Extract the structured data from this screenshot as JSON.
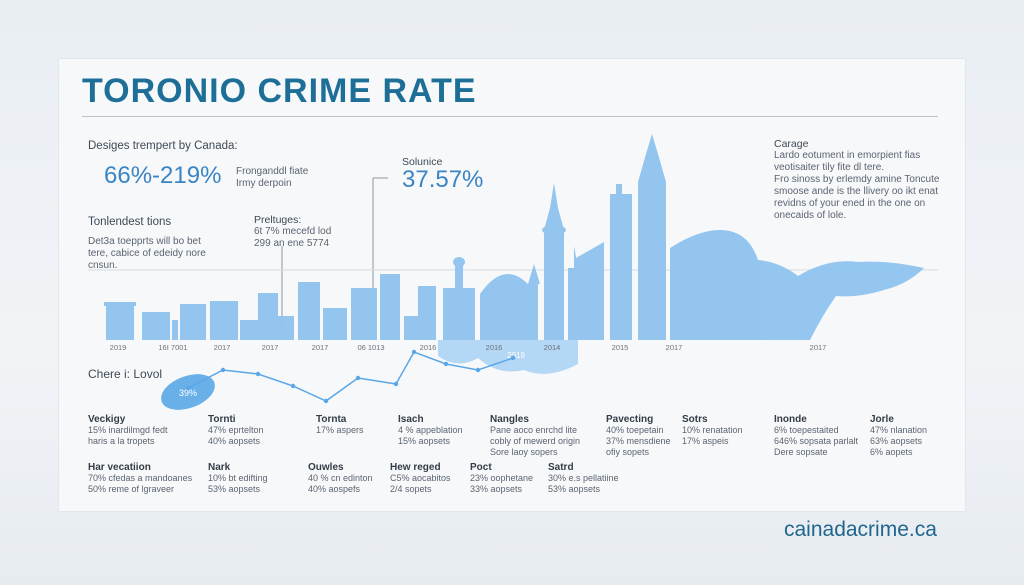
{
  "title": "TORONIO CRIME RATE",
  "watermark": "cainadacrime.ca",
  "callouts": {
    "left_heading": "Desiges trempert by Canada:",
    "range_value": "66%-219%",
    "range_note": [
      "Fronganddl fiate",
      "Irmy derpoin"
    ],
    "sub_heading": "Tonlendest tions",
    "sub_note": [
      "Det3a toepprts will bo bet",
      "tere,  cabice of edeidy nore",
      "cnsun."
    ],
    "mid_heading": "Preltuges:",
    "mid_note": [
      "6t 7% mecefd lod",
      "299 an ene 5774"
    ],
    "center_label": "Solunice",
    "center_value": "37.57%",
    "right_heading": "Carage",
    "right_note": [
      "Lardo eotument in emorpient fias",
      "veotisaiter tily fite dl tere.",
      "Fro sinoss by erlemdy amine Toncute",
      "smoose ande is the llivery oo ikt enat",
      "revidns of your ened in the one on",
      "onecaids of lole."
    ]
  },
  "chart_data": {
    "type": "area",
    "title": "TORONIO CRIME RATE",
    "x_tick_labels": [
      "2019",
      "16I 7001",
      "2017",
      "2017",
      "2017",
      "06 1013",
      "2016",
      "2016",
      "2014",
      "2015",
      "2017",
      "2017"
    ],
    "skyline_label": "2019",
    "line_chart": {
      "label": "Chere i: Lovol",
      "bubble_label": "39%",
      "points": [
        0,
        1,
        2,
        3,
        4,
        5,
        6,
        7,
        8,
        9,
        10
      ]
    }
  },
  "table": {
    "row1": [
      {
        "head": "Veckigy",
        "lines": [
          "15% inardilmgd fedt",
          "haris a la tropets"
        ]
      },
      {
        "head": "Tornti",
        "lines": [
          "47% eprtelton",
          "40% aopsets"
        ]
      },
      {
        "head": "Tornta",
        "lines": [
          "17% aspers"
        ]
      },
      {
        "head": "Isach",
        "lines": [
          "4 % appeblation",
          "15% aopsets"
        ]
      },
      {
        "head": "Nangles",
        "lines": [
          "Pane aoco enrchd lite",
          "cobly of mewerd origin",
          "Sore laoy sopers"
        ]
      },
      {
        "head": "Pavecting",
        "lines": [
          "40% toepetain",
          "37% mensdiene",
          "ofiy sopets"
        ]
      },
      {
        "head": "Sotrs",
        "lines": [
          "10% renatation",
          "17% aspeis"
        ]
      },
      {
        "head": "Inonde",
        "lines": [
          "6% toepestaited",
          "646% sopsata parlalt",
          "Dere sopsate"
        ]
      },
      {
        "head": "Jorle",
        "lines": [
          "47% nlanation",
          "63% aopsets",
          "6% aopets"
        ]
      }
    ],
    "row2": [
      {
        "head": "Har vecatiion",
        "lines": [
          "70% cfedas a mandoanes",
          "50% reme of lgraveer"
        ]
      },
      {
        "head": "Nark",
        "lines": [
          "10% bt edifting",
          "53% aopsets"
        ]
      },
      {
        "head": "Ouwles",
        "lines": [
          "40 % cn edinton",
          "40% aospefs"
        ]
      },
      {
        "head": "Hew reged",
        "lines": [
          "C5% aocabitos",
          "2/4 sopets"
        ]
      },
      {
        "head": "Poct",
        "lines": [
          "23% oophetane",
          "33% aopsets"
        ]
      },
      {
        "head": "Satrd",
        "lines": [
          "30% e.s pellatiine",
          "53% aopsets"
        ]
      }
    ]
  }
}
